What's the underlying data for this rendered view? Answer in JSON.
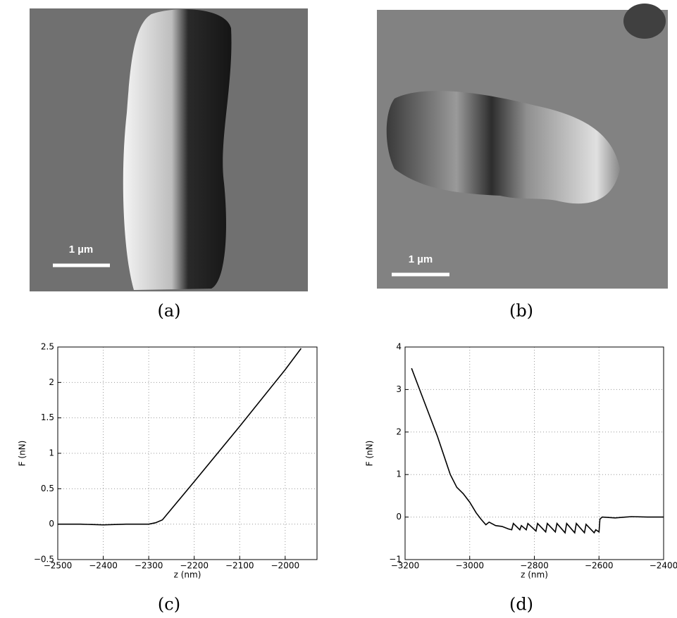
{
  "panels": [
    {
      "label": "(a)",
      "scale_bar": "1 µm"
    },
    {
      "label": "(b)",
      "scale_bar": "1 µm"
    },
    {
      "label": "(c)"
    },
    {
      "label": "(d)"
    }
  ],
  "chart_data": [
    {
      "type": "line",
      "xlabel": "z (nm)",
      "ylabel": "F (nN)",
      "grid": true,
      "color": "#000000",
      "xlim": [
        -2500,
        -1930
      ],
      "ylim": [
        -0.5,
        2.5
      ],
      "xticks": [
        {
          "value": -2500,
          "label": "−2500"
        },
        {
          "value": -2400,
          "label": "−2400"
        },
        {
          "value": -2300,
          "label": "−2300"
        },
        {
          "value": -2200,
          "label": "−2200"
        },
        {
          "value": -2100,
          "label": "−2100"
        },
        {
          "value": -2000,
          "label": "−2000"
        }
      ],
      "yticks": [
        {
          "value": -0.5,
          "label": "−0.5"
        },
        0,
        0.5,
        1,
        1.5,
        2,
        2.5
      ],
      "x": [
        -2500,
        -2450,
        -2400,
        -2350,
        -2300,
        -2285,
        -2270,
        -2200,
        -2100,
        -2000,
        -1965
      ],
      "values": [
        0,
        0,
        -0.01,
        0,
        0,
        0.02,
        0.06,
        0.6,
        1.38,
        2.18,
        2.48
      ]
    },
    {
      "type": "line",
      "xlabel": "z (nm)",
      "ylabel": "F (nN)",
      "grid": true,
      "color": "#000000",
      "xlim": [
        -3200,
        -2400
      ],
      "ylim": [
        -1,
        4
      ],
      "xticks": [
        {
          "value": -3200,
          "label": "−3200"
        },
        {
          "value": -3000,
          "label": "−3000"
        },
        {
          "value": -2800,
          "label": "−2800"
        },
        {
          "value": -2600,
          "label": "−2600"
        },
        {
          "value": -2400,
          "label": "−2400"
        }
      ],
      "yticks": [
        {
          "value": -1,
          "label": "−1"
        },
        0,
        1,
        2,
        3,
        4
      ],
      "x": [
        -3180,
        -3150,
        -3100,
        -3060,
        -3040,
        -3020,
        -3000,
        -2980,
        -2965,
        -2950,
        -2940,
        -2920,
        -2900,
        -2880,
        -2870,
        -2865,
        -2845,
        -2840,
        -2825,
        -2820,
        -2795,
        -2790,
        -2765,
        -2760,
        -2735,
        -2730,
        -2705,
        -2700,
        -2675,
        -2670,
        -2645,
        -2640,
        -2615,
        -2610,
        -2600,
        -2597,
        -2590,
        -2550,
        -2500,
        -2450,
        -2400
      ],
      "values": [
        3.5,
        2.9,
        1.9,
        1.0,
        0.7,
        0.55,
        0.35,
        0.1,
        -0.05,
        -0.18,
        -0.12,
        -0.2,
        -0.22,
        -0.28,
        -0.3,
        -0.15,
        -0.3,
        -0.2,
        -0.3,
        -0.15,
        -0.33,
        -0.15,
        -0.35,
        -0.15,
        -0.35,
        -0.15,
        -0.37,
        -0.15,
        -0.37,
        -0.15,
        -0.37,
        -0.17,
        -0.37,
        -0.3,
        -0.35,
        -0.05,
        0,
        -0.02,
        0.01,
        0,
        0
      ]
    }
  ]
}
